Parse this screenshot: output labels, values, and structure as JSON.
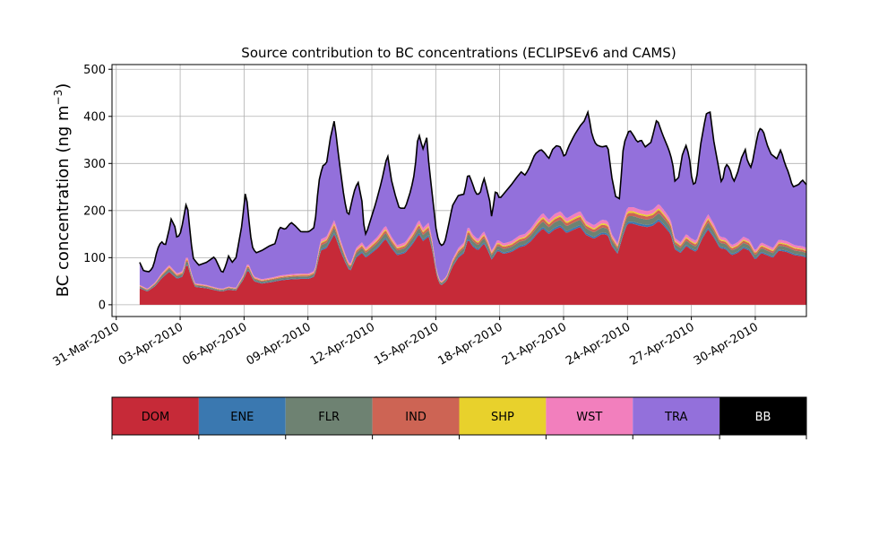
{
  "chart_data": {
    "type": "area",
    "title": "Source contribution to BC concentrations (ECLIPSEv6 and CAMS)",
    "ylabel_main": "BC concentration (ng m",
    "ylabel_exp": "−3",
    "ylabel_close": ")",
    "ylim": [
      -25,
      510
    ],
    "yticks": [
      0,
      100,
      200,
      300,
      400,
      500
    ],
    "xlim_days_from_2010_03_31": [
      -0.2,
      32.4
    ],
    "xticks": [
      {
        "day": 0,
        "label": "31-Mar-2010"
      },
      {
        "day": 3,
        "label": "03-Apr-2010"
      },
      {
        "day": 6,
        "label": "06-Apr-2010"
      },
      {
        "day": 9,
        "label": "09-Apr-2010"
      },
      {
        "day": 12,
        "label": "12-Apr-2010"
      },
      {
        "day": 15,
        "label": "15-Apr-2010"
      },
      {
        "day": 18,
        "label": "18-Apr-2010"
      },
      {
        "day": 21,
        "label": "21-Apr-2010"
      },
      {
        "day": 24,
        "label": "24-Apr-2010"
      },
      {
        "day": 27,
        "label": "27-Apr-2010"
      },
      {
        "day": 30,
        "label": "30-Apr-2010"
      }
    ],
    "grid": true,
    "series": [
      {
        "name": "DOM",
        "color": "#c62a38"
      },
      {
        "name": "ENE",
        "color": "#3a78b0"
      },
      {
        "name": "FLR",
        "color": "#6e8272"
      },
      {
        "name": "IND",
        "color": "#cd6454"
      },
      {
        "name": "SHP",
        "color": "#e8d12c"
      },
      {
        "name": "WST",
        "color": "#f27fbd"
      },
      {
        "name": "TRA",
        "color": "#9370db"
      },
      {
        "name": "BB",
        "color": "#000000"
      }
    ],
    "total_keypoints": [
      [
        1.1,
        90
      ],
      [
        1.3,
        72
      ],
      [
        1.6,
        70
      ],
      [
        1.8,
        82
      ],
      [
        2.0,
        118
      ],
      [
        2.2,
        135
      ],
      [
        2.4,
        125
      ],
      [
        2.6,
        160
      ],
      [
        2.7,
        182
      ],
      [
        2.9,
        165
      ],
      [
        3.0,
        140
      ],
      [
        3.2,
        155
      ],
      [
        3.4,
        200
      ],
      [
        3.5,
        222
      ],
      [
        3.6,
        180
      ],
      [
        3.8,
        100
      ],
      [
        4.1,
        84
      ],
      [
        4.5,
        90
      ],
      [
        4.9,
        102
      ],
      [
        5.1,
        84
      ],
      [
        5.3,
        66
      ],
      [
        5.5,
        85
      ],
      [
        5.6,
        105
      ],
      [
        5.8,
        90
      ],
      [
        6.0,
        100
      ],
      [
        6.3,
        170
      ],
      [
        6.5,
        248
      ],
      [
        6.6,
        200
      ],
      [
        6.8,
        125
      ],
      [
        7.0,
        110
      ],
      [
        7.3,
        115
      ],
      [
        7.7,
        125
      ],
      [
        8.0,
        130
      ],
      [
        8.2,
        165
      ],
      [
        8.5,
        160
      ],
      [
        8.8,
        175
      ],
      [
        9.0,
        168
      ],
      [
        9.3,
        155
      ],
      [
        9.7,
        155
      ],
      [
        10.0,
        165
      ],
      [
        10.2,
        260
      ],
      [
        10.4,
        295
      ],
      [
        10.6,
        300
      ],
      [
        10.8,
        355
      ],
      [
        11.0,
        392
      ],
      [
        11.2,
        320
      ],
      [
        11.5,
        225
      ],
      [
        11.7,
        185
      ],
      [
        12.0,
        240
      ],
      [
        12.2,
        262
      ],
      [
        12.4,
        220
      ],
      [
        12.5,
        168
      ],
      [
        12.6,
        148
      ],
      [
        12.8,
        175
      ],
      [
        13.1,
        215
      ],
      [
        13.4,
        262
      ],
      [
        13.7,
        320
      ],
      [
        13.9,
        265
      ],
      [
        14.1,
        232
      ],
      [
        14.3,
        205
      ],
      [
        14.6,
        205
      ],
      [
        14.9,
        245
      ],
      [
        15.1,
        285
      ],
      [
        15.2,
        342
      ],
      [
        15.3,
        362
      ],
      [
        15.5,
        330
      ],
      [
        15.7,
        355
      ],
      [
        15.8,
        300
      ],
      [
        16.0,
        225
      ],
      [
        16.2,
        150
      ],
      [
        16.4,
        125
      ],
      [
        16.6,
        130
      ],
      [
        16.8,
        168
      ],
      [
        17.0,
        210
      ],
      [
        17.3,
        232
      ],
      [
        17.6,
        235
      ],
      [
        17.8,
        280
      ],
      [
        18.0,
        260
      ],
      [
        18.2,
        235
      ],
      [
        18.4,
        235
      ],
      [
        18.6,
        270
      ],
      [
        18.7,
        255
      ],
      [
        18.9,
        220
      ],
      [
        19.0,
        185
      ],
      [
        19.2,
        245
      ],
      [
        19.4,
        225
      ],
      [
        19.7,
        240
      ],
      [
        20.0,
        255
      ],
      [
        20.3,
        272
      ],
      [
        20.5,
        282
      ],
      [
        20.7,
        275
      ],
      [
        20.9,
        290
      ],
      [
        21.2,
        320
      ],
      [
        21.5,
        330
      ],
      [
        21.7,
        322
      ],
      [
        21.9,
        310
      ],
      [
        22.1,
        330
      ],
      [
        22.3,
        338
      ],
      [
        22.5,
        335
      ],
      [
        22.7,
        312
      ],
      [
        22.9,
        335
      ],
      [
        23.2,
        360
      ],
      [
        23.5,
        380
      ],
      [
        23.7,
        390
      ],
      [
        23.9,
        410
      ],
      [
        24.1,
        360
      ],
      [
        24.3,
        340
      ],
      [
        24.6,
        335
      ],
      [
        24.9,
        338
      ],
      [
        25.1,
        272
      ],
      [
        25.3,
        230
      ],
      [
        25.5,
        225
      ],
      [
        25.7,
        340
      ],
      [
        26.0,
        372
      ],
      [
        26.2,
        360
      ],
      [
        26.4,
        345
      ],
      [
        26.6,
        350
      ],
      [
        26.8,
        335
      ],
      [
        27.1,
        345
      ],
      [
        27.4,
        395
      ],
      [
        27.7,
        360
      ],
      [
        28.0,
        330
      ],
      [
        28.2,
        302
      ],
      [
        28.3,
        262
      ],
      [
        28.5,
        270
      ],
      [
        28.7,
        320
      ],
      [
        28.9,
        340
      ],
      [
        29.1,
        300
      ],
      [
        29.2,
        255
      ],
      [
        29.4,
        260
      ],
      [
        29.6,
        335
      ],
      [
        29.9,
        405
      ],
      [
        30.1,
        410
      ],
      [
        30.3,
        345
      ],
      [
        30.5,
        300
      ],
      [
        30.7,
        255
      ],
      [
        30.9,
        300
      ],
      [
        31.1,
        290
      ],
      [
        31.3,
        260
      ],
      [
        31.5,
        280
      ],
      [
        31.7,
        312
      ],
      [
        31.9,
        330
      ],
      [
        32.0,
        305
      ],
      [
        32.2,
        290
      ],
      [
        32.4,
        335
      ],
      [
        32.6,
        375
      ],
      [
        32.8,
        370
      ],
      [
        33.0,
        340
      ],
      [
        33.2,
        320
      ],
      [
        33.5,
        310
      ],
      [
        33.7,
        330
      ],
      [
        33.9,
        300
      ],
      [
        34.1,
        280
      ],
      [
        34.3,
        250
      ],
      [
        34.6,
        255
      ],
      [
        34.8,
        265
      ],
      [
        35.0,
        255
      ]
    ],
    "base_keypoints": [
      [
        1.1,
        35
      ],
      [
        1.5,
        28
      ],
      [
        1.9,
        40
      ],
      [
        2.2,
        55
      ],
      [
        2.6,
        70
      ],
      [
        3.0,
        55
      ],
      [
        3.3,
        60
      ],
      [
        3.5,
        90
      ],
      [
        3.7,
        60
      ],
      [
        3.9,
        38
      ],
      [
        4.5,
        35
      ],
      [
        5.0,
        30
      ],
      [
        5.3,
        28
      ],
      [
        5.6,
        32
      ],
      [
        6.0,
        30
      ],
      [
        6.4,
        55
      ],
      [
        6.6,
        75
      ],
      [
        6.9,
        50
      ],
      [
        7.3,
        45
      ],
      [
        7.8,
        48
      ],
      [
        8.3,
        52
      ],
      [
        8.8,
        54
      ],
      [
        9.3,
        55
      ],
      [
        9.7,
        55
      ],
      [
        10.0,
        60
      ],
      [
        10.3,
        115
      ],
      [
        10.6,
        120
      ],
      [
        11.0,
        150
      ],
      [
        11.3,
        115
      ],
      [
        11.6,
        85
      ],
      [
        11.8,
        70
      ],
      [
        12.1,
        100
      ],
      [
        12.4,
        110
      ],
      [
        12.6,
        100
      ],
      [
        12.9,
        110
      ],
      [
        13.2,
        120
      ],
      [
        13.6,
        140
      ],
      [
        13.9,
        120
      ],
      [
        14.2,
        105
      ],
      [
        14.6,
        110
      ],
      [
        15.0,
        130
      ],
      [
        15.3,
        150
      ],
      [
        15.5,
        135
      ],
      [
        15.8,
        145
      ],
      [
        16.0,
        110
      ],
      [
        16.2,
        60
      ],
      [
        16.4,
        40
      ],
      [
        16.7,
        50
      ],
      [
        17.0,
        80
      ],
      [
        17.3,
        100
      ],
      [
        17.6,
        110
      ],
      [
        17.8,
        140
      ],
      [
        18.0,
        125
      ],
      [
        18.3,
        115
      ],
      [
        18.6,
        130
      ],
      [
        18.8,
        115
      ],
      [
        19.0,
        95
      ],
      [
        19.3,
        115
      ],
      [
        19.6,
        108
      ],
      [
        20.0,
        112
      ],
      [
        20.4,
        122
      ],
      [
        20.7,
        125
      ],
      [
        21.0,
        135
      ],
      [
        21.3,
        150
      ],
      [
        21.6,
        162
      ],
      [
        21.9,
        150
      ],
      [
        22.2,
        160
      ],
      [
        22.5,
        165
      ],
      [
        22.8,
        152
      ],
      [
        23.2,
        160
      ],
      [
        23.5,
        165
      ],
      [
        23.8,
        148
      ],
      [
        24.2,
        140
      ],
      [
        24.6,
        150
      ],
      [
        24.9,
        148
      ],
      [
        25.1,
        125
      ],
      [
        25.4,
        108
      ],
      [
        25.7,
        150
      ],
      [
        25.9,
        172
      ],
      [
        26.2,
        172
      ],
      [
        26.5,
        168
      ],
      [
        26.9,
        165
      ],
      [
        27.2,
        168
      ],
      [
        27.5,
        178
      ],
      [
        27.8,
        165
      ],
      [
        28.1,
        150
      ],
      [
        28.3,
        118
      ],
      [
        28.6,
        110
      ],
      [
        28.9,
        125
      ],
      [
        29.1,
        118
      ],
      [
        29.4,
        112
      ],
      [
        29.7,
        140
      ],
      [
        30.0,
        160
      ],
      [
        30.3,
        142
      ],
      [
        30.6,
        120
      ],
      [
        30.9,
        118
      ],
      [
        31.2,
        105
      ],
      [
        31.5,
        110
      ],
      [
        31.8,
        120
      ],
      [
        32.1,
        115
      ],
      [
        32.4,
        95
      ],
      [
        32.7,
        110
      ],
      [
        33.0,
        105
      ],
      [
        33.3,
        100
      ],
      [
        33.6,
        115
      ],
      [
        34.0,
        112
      ],
      [
        34.4,
        105
      ],
      [
        34.8,
        103
      ],
      [
        35.0,
        100
      ]
    ],
    "tra_fraction_note": "",
    "legend_position": "below"
  }
}
